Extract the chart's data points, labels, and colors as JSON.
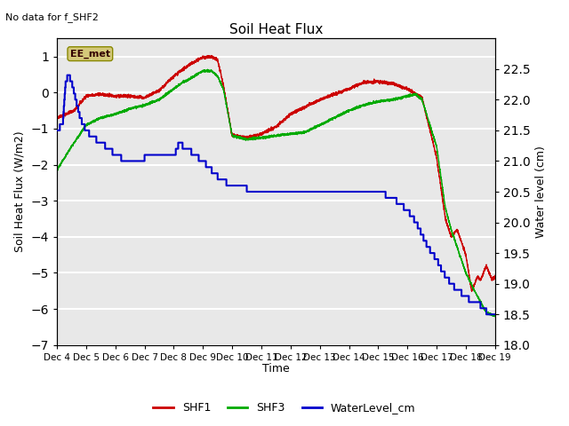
{
  "title": "Soil Heat Flux",
  "no_data_text": "No data for f_SHF2",
  "ylabel_left": "Soil Heat Flux (W/m2)",
  "ylabel_right": "Water level (cm)",
  "xlabel": "Time",
  "ylim_left": [
    -7.0,
    1.5
  ],
  "ylim_right": [
    18.0,
    23.0
  ],
  "yticks_left": [
    -7.0,
    -6.0,
    -5.0,
    -4.0,
    -3.0,
    -2.0,
    -1.0,
    0.0,
    1.0
  ],
  "yticks_right": [
    18.0,
    18.5,
    19.0,
    19.5,
    20.0,
    20.5,
    21.0,
    21.5,
    22.0,
    22.5
  ],
  "xtick_labels": [
    "Dec 4",
    "Dec 5",
    "Dec 6",
    "Dec 7",
    "Dec 8",
    "Dec 9",
    "Dec 10",
    "Dec 11",
    "Dec 12",
    "Dec 13",
    "Dec 14",
    "Dec 15",
    "Dec 16",
    "Dec 17",
    "Dec 18",
    "Dec 19"
  ],
  "bg_color": "#e8e8e8",
  "grid_color": "#ffffff",
  "annotation_text": "EE_met",
  "annotation_box_color": "#d4c97a",
  "shf1_color": "#cc0000",
  "shf3_color": "#00aa00",
  "water_color": "#0000cc",
  "legend_entries": [
    "SHF1",
    "SHF3",
    "WaterLevel_cm"
  ]
}
